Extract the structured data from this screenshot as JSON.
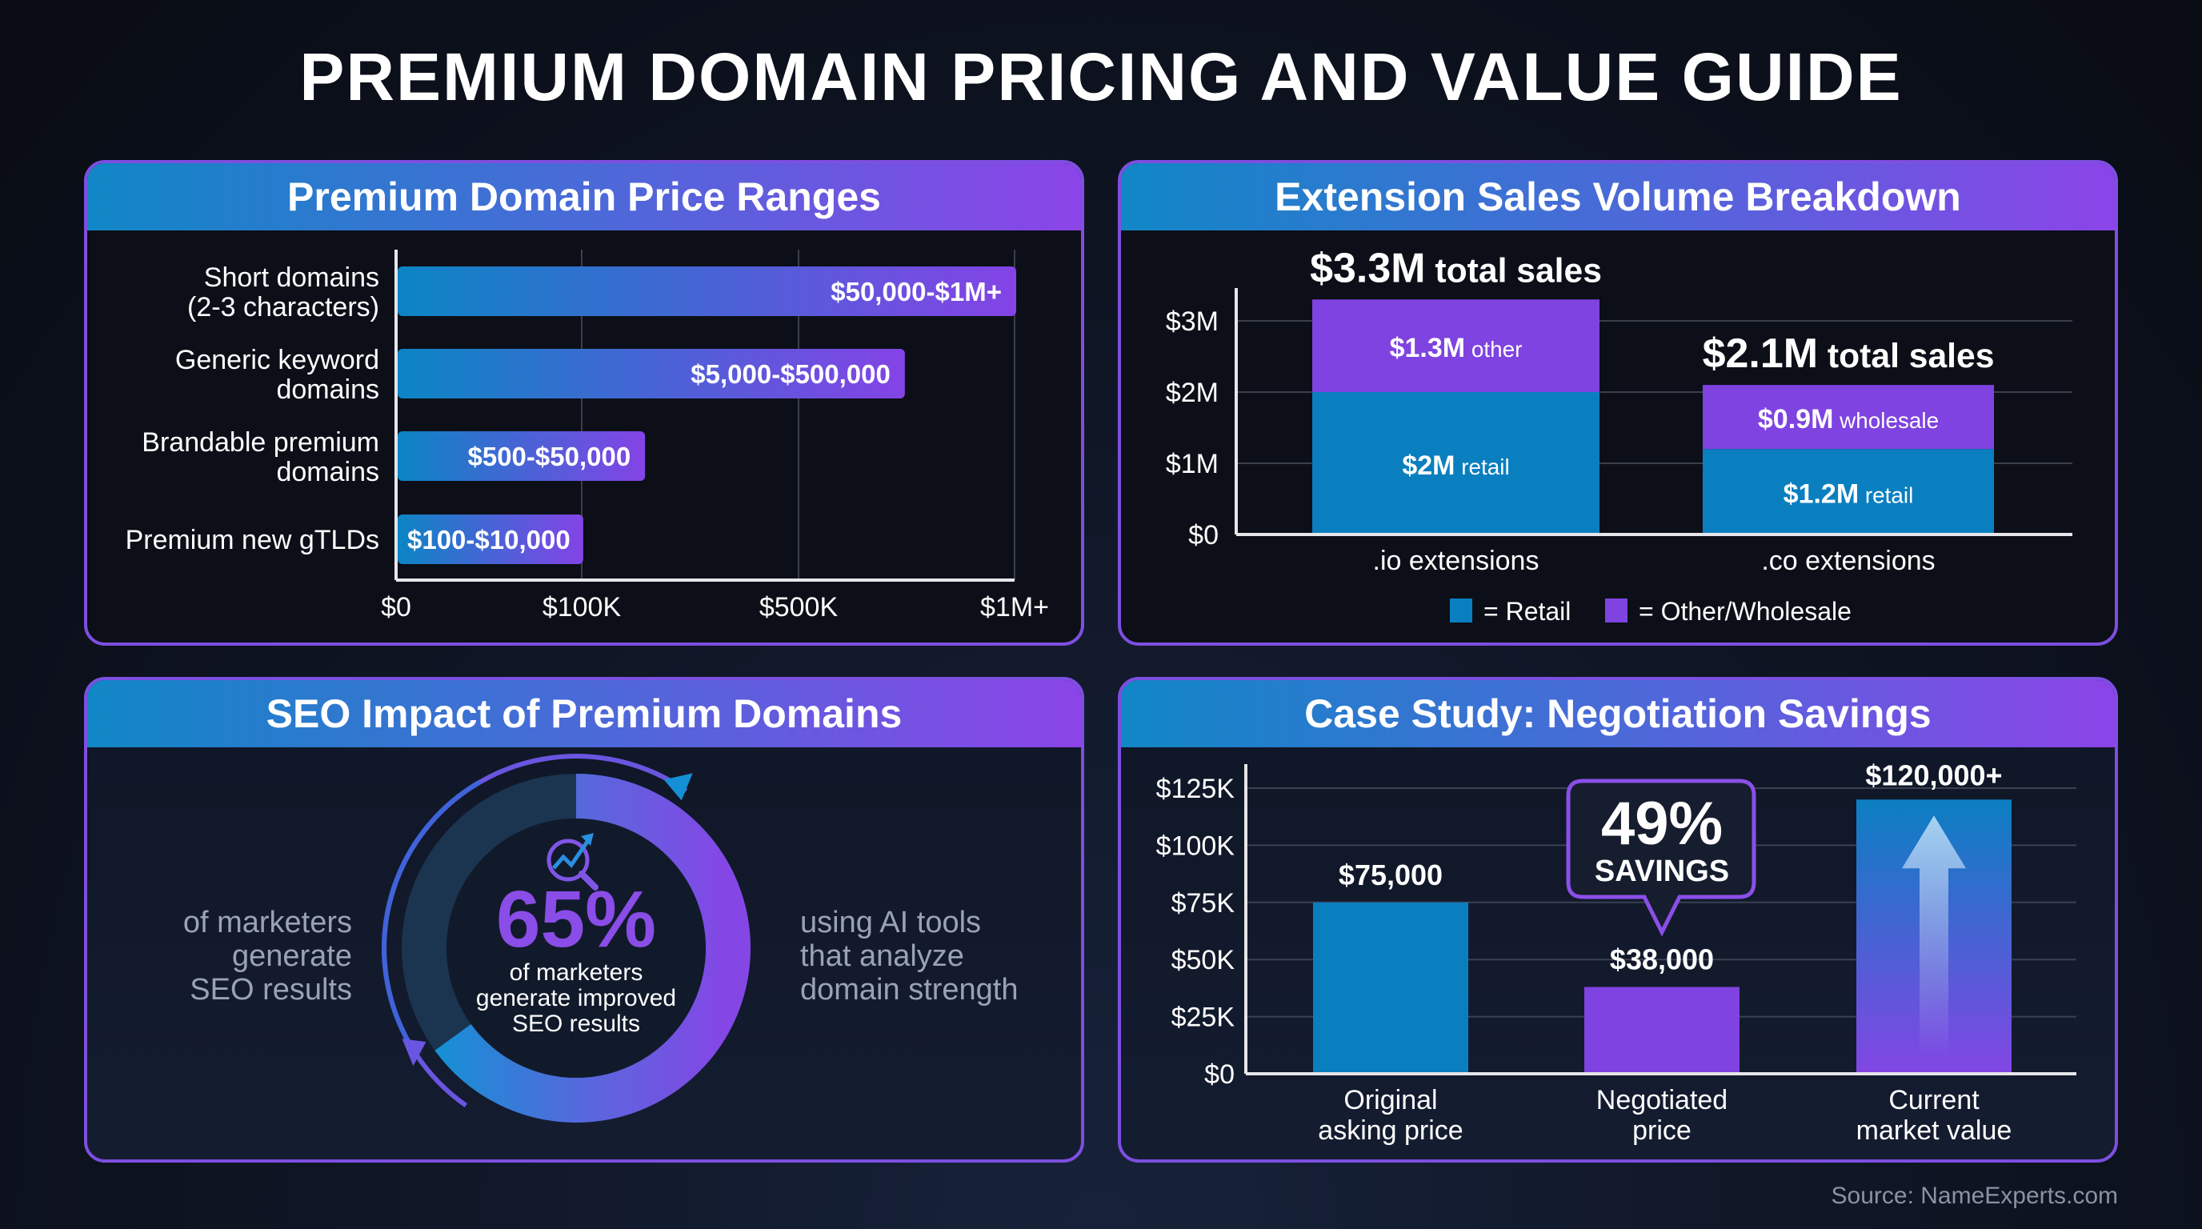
{
  "title": "PREMIUM DOMAIN PRICING AND VALUE GUIDE",
  "source": "Source: NameExperts.com",
  "colors": {
    "blue": "#0a7fbf",
    "purple": "#7e43e0",
    "header_start": "#1187c6",
    "header_end": "#8b44e8",
    "ring_track": "#1b3450"
  },
  "chart_data": [
    {
      "type": "bar",
      "orientation": "horizontal",
      "title": "Premium Domain Price Ranges",
      "categories": [
        [
          "Short domains",
          "(2-3 characters)"
        ],
        [
          "Generic keyword",
          "domains"
        ],
        [
          "Brandable premium",
          "domains"
        ],
        [
          "Premium new gTLDs"
        ]
      ],
      "bars": [
        {
          "label": "$50,000-$1M+",
          "min": 50000,
          "max": 1000000,
          "bar_length_pct": 100
        },
        {
          "label": "$5,000-$500,000",
          "min": 5000,
          "max": 500000,
          "bar_length_pct": 82
        },
        {
          "label": "$500-$50,000",
          "min": 500,
          "max": 50000,
          "bar_length_pct": 40
        },
        {
          "label": "$100-$10,000",
          "min": 100,
          "max": 10000,
          "bar_length_pct": 30
        }
      ],
      "x_ticks": [
        "$0",
        "$100K",
        "$500K",
        "$1M+"
      ],
      "grid": true
    },
    {
      "type": "bar",
      "stacked": true,
      "title": "Extension Sales Volume Breakdown",
      "categories": [
        ".io extensions",
        ".co extensions"
      ],
      "unit": "$M",
      "series": [
        {
          "name": "Retail",
          "values": [
            2.0,
            1.2
          ],
          "labels": [
            [
              "$2M",
              "retail"
            ],
            [
              "$1.2M",
              "retail"
            ]
          ]
        },
        {
          "name": "Other/Wholesale",
          "values": [
            1.3,
            0.9
          ],
          "labels": [
            [
              "$1.3M",
              "other"
            ],
            [
              "$0.9M",
              "wholesale"
            ]
          ]
        }
      ],
      "totals": [
        [
          "$3.3M",
          "total sales"
        ],
        [
          "$2.1M",
          "total sales"
        ]
      ],
      "y_ticks": [
        {
          "v": 0,
          "label": "$0"
        },
        {
          "v": 1,
          "label": "$1M"
        },
        {
          "v": 2,
          "label": "$2M"
        },
        {
          "v": 3,
          "label": "$3M"
        }
      ],
      "ylim": [
        0,
        3.4
      ],
      "legend": [
        "= Retail",
        "= Other/Wholesale"
      ],
      "legend_placement": "bottom",
      "grid": true
    },
    {
      "type": "pie",
      "style": "donut",
      "title": "SEO Impact of Premium Domains",
      "value_pct": 65,
      "center_value": "65%",
      "center_caption": [
        "of marketers",
        "generate improved",
        "SEO results"
      ],
      "left_text": [
        "of marketers",
        "generate",
        "SEO results"
      ],
      "right_text": [
        "using AI tools",
        "that analyze",
        "domain strength"
      ],
      "icon": "search-trend-icon"
    },
    {
      "type": "bar",
      "title": "Case Study: Negotiation Savings",
      "categories": [
        [
          "Original",
          "asking price"
        ],
        [
          "Negotiated",
          "price"
        ],
        [
          "Current",
          "market value"
        ]
      ],
      "values": [
        75000,
        38000,
        120000
      ],
      "value_labels": [
        "$75,000",
        "$38,000",
        "$120,000+"
      ],
      "y_ticks": [
        {
          "v": 0,
          "label": "$0"
        },
        {
          "v": 25000,
          "label": "$25K"
        },
        {
          "v": 50000,
          "label": "$50K"
        },
        {
          "v": 75000,
          "label": "$75K"
        },
        {
          "v": 100000,
          "label": "$100K"
        },
        {
          "v": 125000,
          "label": "$125K"
        }
      ],
      "ylim": [
        0,
        135000
      ],
      "callout": {
        "value": "49%",
        "label": "SAVINGS"
      },
      "grid": true
    }
  ]
}
